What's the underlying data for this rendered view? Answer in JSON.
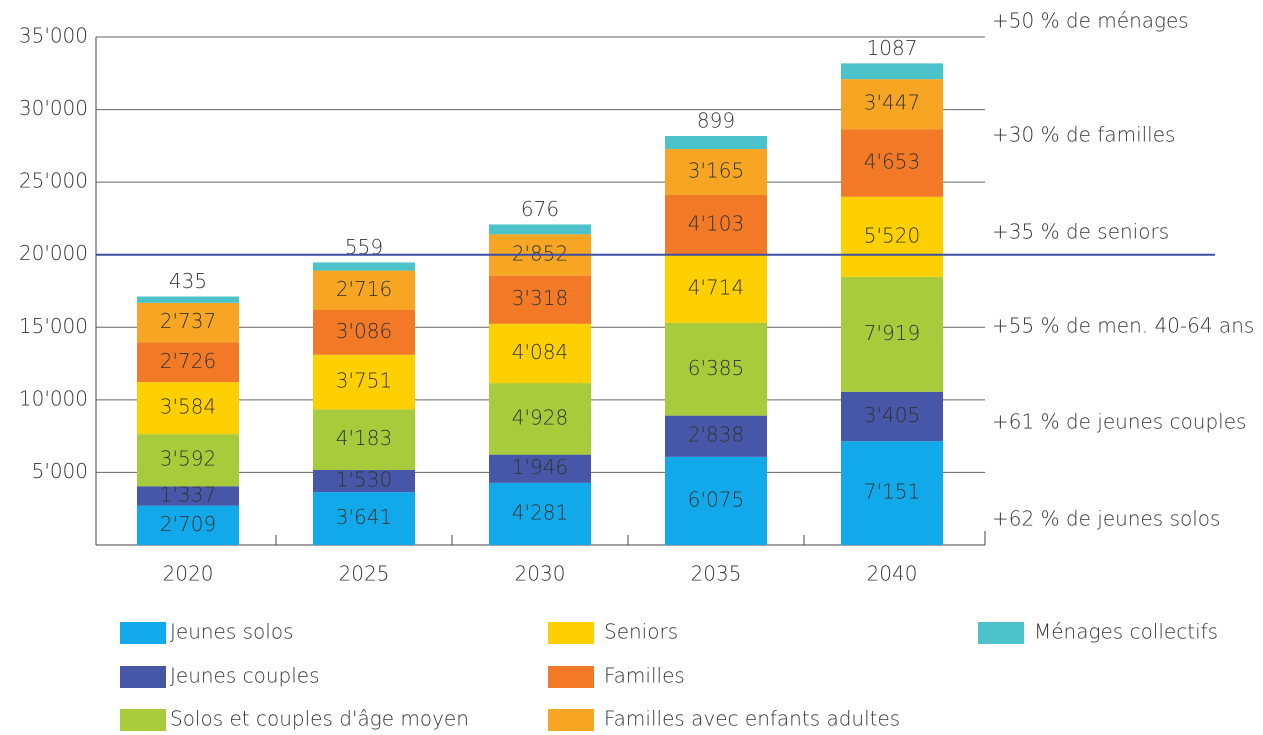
{
  "chart_data": {
    "type": "stacked_bar",
    "categories": [
      "2020",
      "2025",
      "2030",
      "2035",
      "2040"
    ],
    "series": [
      {
        "name": "Jeunes solos",
        "color": "#12a9ea",
        "values": [
          2709,
          3641,
          4281,
          6075,
          7151
        ],
        "value_labels": [
          "2'709",
          "3'641",
          "4'281",
          "6'075",
          "7'151"
        ]
      },
      {
        "name": "Jeunes couples",
        "color": "#4557a6",
        "values": [
          1337,
          1530,
          1946,
          2838,
          3405
        ],
        "value_labels": [
          "1'337",
          "1'530",
          "1'946",
          "2'838",
          "3'405"
        ]
      },
      {
        "name": "Solos et couples d'âge moyen",
        "color": "#a7cb3a",
        "values": [
          3592,
          4183,
          4928,
          6385,
          7919
        ],
        "value_labels": [
          "3'592",
          "4'183",
          "4'928",
          "6'385",
          "7'919"
        ]
      },
      {
        "name": "Seniors",
        "color": "#ffd000",
        "values": [
          3584,
          3751,
          4084,
          4714,
          5520
        ],
        "value_labels": [
          "3'584",
          "3'751",
          "4'084",
          "4'714",
          "5'520"
        ]
      },
      {
        "name": "Familles",
        "color": "#f27a26",
        "values": [
          2726,
          3086,
          3318,
          4103,
          4653
        ],
        "value_labels": [
          "2'726",
          "3'086",
          "3'318",
          "4'103",
          "4'653"
        ]
      },
      {
        "name": "Familles avec enfants adultes",
        "color": "#f6a623",
        "values": [
          2737,
          2716,
          2852,
          3165,
          3447
        ],
        "value_labels": [
          "2'737",
          "2'716",
          "2'852",
          "3'165",
          "3'447"
        ]
      },
      {
        "name": "Ménages collectifs",
        "color": "#4cc2cb",
        "values": [
          435,
          559,
          676,
          899,
          1087
        ]
      }
    ],
    "ylim": [
      0,
      35000
    ],
    "yticks": [
      {
        "value": 5000,
        "label": "5'000"
      },
      {
        "value": 10000,
        "label": "10'000"
      },
      {
        "value": 15000,
        "label": "15'000"
      },
      {
        "value": 20000,
        "label": "20'000"
      },
      {
        "value": 25000,
        "label": "25'000"
      },
      {
        "value": 30000,
        "label": "30'000"
      },
      {
        "value": 35000,
        "label": "35'000"
      }
    ],
    "grid": true,
    "reference_line": {
      "value": 20000,
      "color": "#3d4fa3"
    },
    "annotations": [
      "+50 % de ménages",
      "+30 % de familles",
      "+35 % de seniors",
      "+55 % de men. 40-64 ans",
      "+61 % de jeunes couples",
      "+62 % de jeunes solos"
    ]
  }
}
